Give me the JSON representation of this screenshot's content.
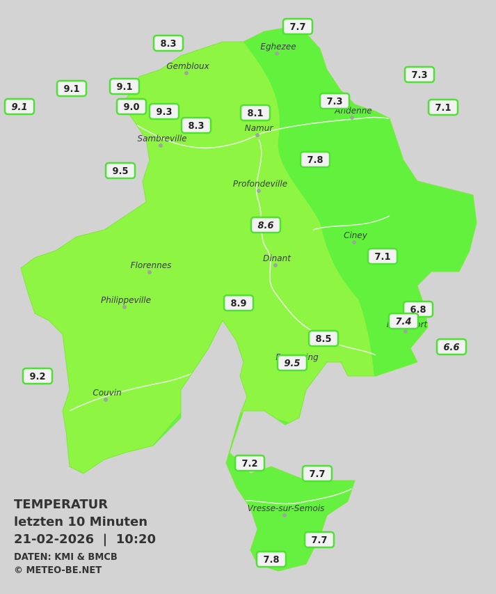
{
  "stations": [
    {
      "label": "7.7"
    },
    {
      "label": "8.3"
    },
    {
      "label": "7.3"
    },
    {
      "label": "9.1"
    },
    {
      "label": "9.1"
    },
    {
      "label": "7.3"
    },
    {
      "label": "9.1",
      "italic": true
    },
    {
      "label": "9.0"
    },
    {
      "label": "9.3"
    },
    {
      "label": "8.1"
    },
    {
      "label": "7.1"
    },
    {
      "label": "8.3"
    },
    {
      "label": "7.8"
    },
    {
      "label": "9.5"
    },
    {
      "label": "8.6",
      "italic": true
    },
    {
      "label": "7.1"
    },
    {
      "label": "8.9"
    },
    {
      "label": "6.8"
    },
    {
      "label": "7.4",
      "italic": true
    },
    {
      "label": "8.5"
    },
    {
      "label": "6.6",
      "italic": true
    },
    {
      "label": "9.5",
      "italic": true
    },
    {
      "label": "9.2"
    },
    {
      "label": "7.2"
    },
    {
      "label": "7.7"
    },
    {
      "label": "7.7"
    },
    {
      "label": "7.8"
    }
  ],
  "cities": [
    "Eghezee",
    "Gembloux",
    "Andenne",
    "Namur",
    "Sambreville",
    "Profondeville",
    "Ciney",
    "Dinant",
    "Florennes",
    "Philippeville",
    "Rochefort",
    "Beauraing",
    "Couvin",
    "Vresse-sur-Semois"
  ],
  "legend": {
    "title": "TEMPERATUR",
    "period": "letzten 10 Minuten",
    "datetime": "21-02-2026  |  10:20",
    "source": "DATEN: KMI & BMCB",
    "copyright": "© METEO-BE.NET"
  }
}
